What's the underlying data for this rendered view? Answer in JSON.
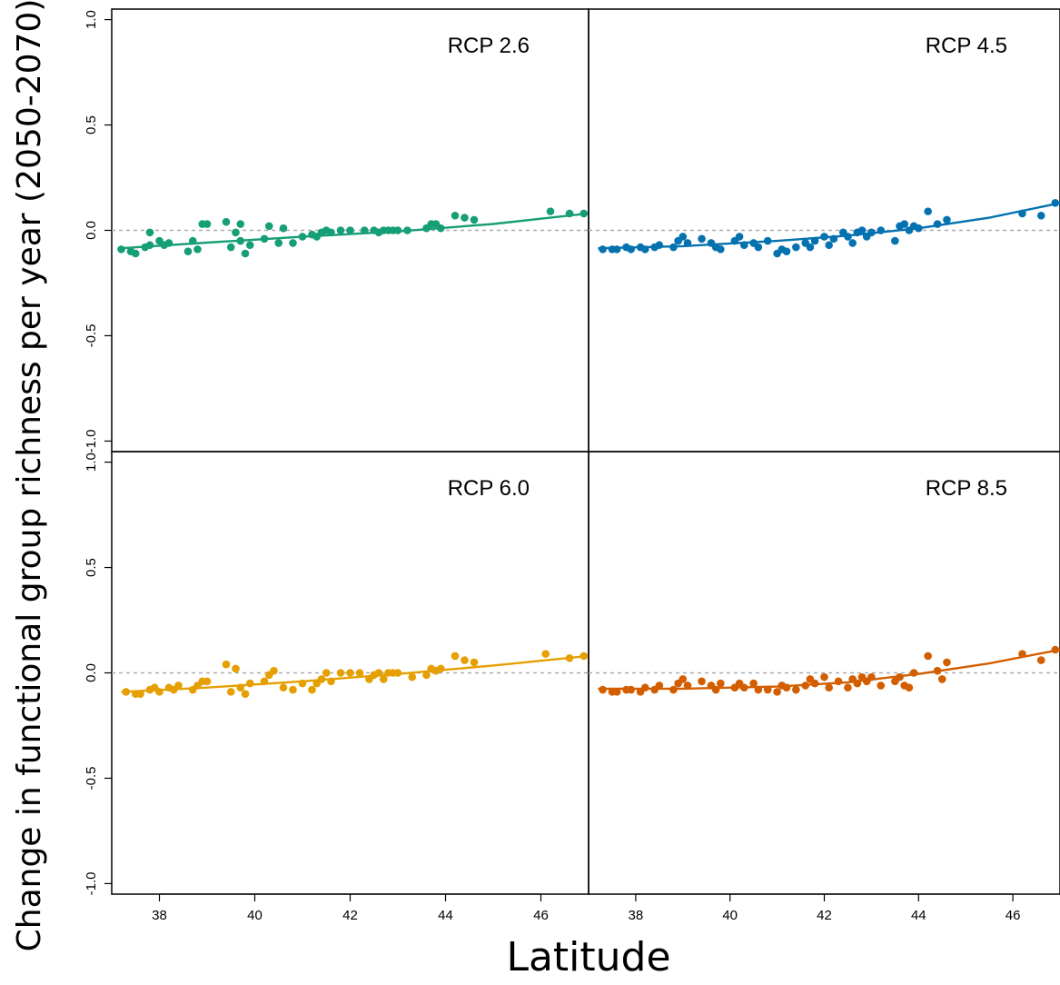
{
  "chart_data": {
    "type": "scatter",
    "xlabel": "Latitude",
    "ylabel": "Change in functional group richness per year (2050-2070)",
    "xlim": [
      37,
      47
    ],
    "ylim": [
      -1.05,
      1.05
    ],
    "x_ticks": [
      38,
      40,
      42,
      44,
      46
    ],
    "y_ticks": [
      -1.0,
      -0.5,
      0.0,
      0.5,
      1.0
    ],
    "y_tick_labels": [
      "-1.0",
      "-0.5",
      "0.0",
      "0.5",
      "1.0"
    ],
    "reference_line": {
      "y": 0.0,
      "style": "dotted",
      "color": "#aaaaaa"
    },
    "grid": false,
    "panels": [
      {
        "label": "RCP 2.6",
        "color": "#169e76",
        "points": [
          [
            37.2,
            -0.09
          ],
          [
            37.4,
            -0.1
          ],
          [
            37.5,
            -0.11
          ],
          [
            37.7,
            -0.08
          ],
          [
            37.8,
            -0.07
          ],
          [
            37.8,
            -0.01
          ],
          [
            38.0,
            -0.05
          ],
          [
            38.1,
            -0.07
          ],
          [
            38.2,
            -0.06
          ],
          [
            38.6,
            -0.1
          ],
          [
            38.7,
            -0.05
          ],
          [
            38.8,
            -0.09
          ],
          [
            38.9,
            0.03
          ],
          [
            39.0,
            0.03
          ],
          [
            39.4,
            0.04
          ],
          [
            39.5,
            -0.08
          ],
          [
            39.6,
            -0.01
          ],
          [
            39.7,
            0.03
          ],
          [
            39.7,
            -0.05
          ],
          [
            39.8,
            -0.11
          ],
          [
            39.9,
            -0.07
          ],
          [
            40.2,
            -0.04
          ],
          [
            40.3,
            0.02
          ],
          [
            40.5,
            -0.06
          ],
          [
            40.6,
            0.01
          ],
          [
            40.8,
            -0.06
          ],
          [
            41.0,
            -0.03
          ],
          [
            41.2,
            -0.02
          ],
          [
            41.3,
            -0.03
          ],
          [
            41.4,
            -0.01
          ],
          [
            41.5,
            0.0
          ],
          [
            41.6,
            -0.01
          ],
          [
            41.8,
            0.0
          ],
          [
            42.0,
            0.0
          ],
          [
            42.3,
            0.0
          ],
          [
            42.5,
            0.0
          ],
          [
            42.6,
            -0.01
          ],
          [
            42.7,
            0.0
          ],
          [
            42.8,
            0.0
          ],
          [
            42.9,
            0.0
          ],
          [
            43.0,
            0.0
          ],
          [
            43.2,
            0.0
          ],
          [
            43.6,
            0.01
          ],
          [
            43.7,
            0.03
          ],
          [
            43.8,
            0.03
          ],
          [
            43.9,
            0.01
          ],
          [
            44.2,
            0.07
          ],
          [
            44.4,
            0.06
          ],
          [
            44.6,
            0.05
          ],
          [
            46.2,
            0.09
          ],
          [
            46.6,
            0.08
          ],
          [
            46.9,
            0.08
          ]
        ],
        "trend": [
          [
            37.2,
            -0.085
          ],
          [
            39,
            -0.058
          ],
          [
            41,
            -0.03
          ],
          [
            43,
            -0.005
          ],
          [
            45,
            0.03
          ],
          [
            47,
            0.08
          ]
        ]
      },
      {
        "label": "RCP 4.5",
        "color": "#0572b0",
        "points": [
          [
            37.3,
            -0.09
          ],
          [
            37.5,
            -0.09
          ],
          [
            37.6,
            -0.09
          ],
          [
            37.8,
            -0.08
          ],
          [
            37.9,
            -0.09
          ],
          [
            38.1,
            -0.08
          ],
          [
            38.2,
            -0.09
          ],
          [
            38.4,
            -0.08
          ],
          [
            38.5,
            -0.07
          ],
          [
            38.8,
            -0.08
          ],
          [
            38.9,
            -0.05
          ],
          [
            39.0,
            -0.03
          ],
          [
            39.1,
            -0.06
          ],
          [
            39.4,
            -0.04
          ],
          [
            39.6,
            -0.06
          ],
          [
            39.7,
            -0.08
          ],
          [
            39.8,
            -0.09
          ],
          [
            40.1,
            -0.05
          ],
          [
            40.2,
            -0.03
          ],
          [
            40.3,
            -0.07
          ],
          [
            40.5,
            -0.06
          ],
          [
            40.6,
            -0.08
          ],
          [
            40.8,
            -0.05
          ],
          [
            41.0,
            -0.11
          ],
          [
            41.1,
            -0.09
          ],
          [
            41.2,
            -0.1
          ],
          [
            41.4,
            -0.08
          ],
          [
            41.6,
            -0.06
          ],
          [
            41.7,
            -0.08
          ],
          [
            41.8,
            -0.05
          ],
          [
            42.0,
            -0.03
          ],
          [
            42.1,
            -0.07
          ],
          [
            42.2,
            -0.04
          ],
          [
            42.4,
            -0.01
          ],
          [
            42.5,
            -0.03
          ],
          [
            42.6,
            -0.06
          ],
          [
            42.7,
            -0.01
          ],
          [
            42.8,
            0.0
          ],
          [
            42.9,
            -0.03
          ],
          [
            43.0,
            -0.01
          ],
          [
            43.2,
            0.0
          ],
          [
            43.5,
            -0.05
          ],
          [
            43.6,
            0.02
          ],
          [
            43.7,
            0.03
          ],
          [
            43.8,
            0.0
          ],
          [
            43.9,
            0.02
          ],
          [
            44.0,
            0.01
          ],
          [
            44.2,
            0.09
          ],
          [
            44.4,
            0.03
          ],
          [
            44.6,
            0.05
          ],
          [
            46.2,
            0.08
          ],
          [
            46.6,
            0.07
          ],
          [
            46.9,
            0.13
          ]
        ],
        "trend": [
          [
            37.2,
            -0.085
          ],
          [
            39,
            -0.075
          ],
          [
            41,
            -0.05
          ],
          [
            42.5,
            -0.025
          ],
          [
            44,
            0.01
          ],
          [
            45.5,
            0.06
          ],
          [
            47,
            0.13
          ]
        ]
      },
      {
        "label": "RCP 6.0",
        "color": "#e59f01",
        "points": [
          [
            37.3,
            -0.09
          ],
          [
            37.5,
            -0.1
          ],
          [
            37.6,
            -0.1
          ],
          [
            37.8,
            -0.08
          ],
          [
            37.9,
            -0.07
          ],
          [
            38.0,
            -0.09
          ],
          [
            38.2,
            -0.07
          ],
          [
            38.3,
            -0.08
          ],
          [
            38.4,
            -0.06
          ],
          [
            38.7,
            -0.08
          ],
          [
            38.8,
            -0.06
          ],
          [
            38.9,
            -0.04
          ],
          [
            39.0,
            -0.04
          ],
          [
            39.4,
            0.04
          ],
          [
            39.5,
            -0.09
          ],
          [
            39.6,
            0.02
          ],
          [
            39.7,
            -0.07
          ],
          [
            39.8,
            -0.1
          ],
          [
            39.9,
            -0.05
          ],
          [
            40.2,
            -0.04
          ],
          [
            40.3,
            -0.01
          ],
          [
            40.4,
            0.01
          ],
          [
            40.6,
            -0.07
          ],
          [
            40.8,
            -0.08
          ],
          [
            41.0,
            -0.05
          ],
          [
            41.2,
            -0.08
          ],
          [
            41.3,
            -0.05
          ],
          [
            41.4,
            -0.03
          ],
          [
            41.5,
            0.0
          ],
          [
            41.6,
            -0.04
          ],
          [
            41.8,
            0.0
          ],
          [
            42.0,
            0.0
          ],
          [
            42.2,
            0.0
          ],
          [
            42.4,
            -0.03
          ],
          [
            42.5,
            -0.01
          ],
          [
            42.6,
            0.0
          ],
          [
            42.7,
            -0.03
          ],
          [
            42.8,
            0.0
          ],
          [
            42.9,
            0.0
          ],
          [
            43.0,
            0.0
          ],
          [
            43.3,
            -0.02
          ],
          [
            43.6,
            -0.01
          ],
          [
            43.7,
            0.02
          ],
          [
            43.8,
            0.01
          ],
          [
            43.9,
            0.02
          ],
          [
            44.2,
            0.08
          ],
          [
            44.4,
            0.06
          ],
          [
            44.6,
            0.05
          ],
          [
            46.1,
            0.09
          ],
          [
            46.6,
            0.07
          ],
          [
            46.9,
            0.08
          ]
        ],
        "trend": [
          [
            37.2,
            -0.09
          ],
          [
            39,
            -0.07
          ],
          [
            41,
            -0.04
          ],
          [
            43,
            -0.005
          ],
          [
            45,
            0.035
          ],
          [
            47,
            0.08
          ]
        ]
      },
      {
        "label": "RCP 8.5",
        "color": "#d35e00",
        "points": [
          [
            37.3,
            -0.08
          ],
          [
            37.5,
            -0.09
          ],
          [
            37.6,
            -0.09
          ],
          [
            37.8,
            -0.08
          ],
          [
            37.9,
            -0.08
          ],
          [
            38.1,
            -0.09
          ],
          [
            38.2,
            -0.07
          ],
          [
            38.4,
            -0.08
          ],
          [
            38.5,
            -0.06
          ],
          [
            38.8,
            -0.08
          ],
          [
            38.9,
            -0.05
          ],
          [
            39.0,
            -0.03
          ],
          [
            39.1,
            -0.06
          ],
          [
            39.4,
            -0.04
          ],
          [
            39.6,
            -0.06
          ],
          [
            39.7,
            -0.08
          ],
          [
            39.8,
            -0.05
          ],
          [
            40.1,
            -0.07
          ],
          [
            40.2,
            -0.05
          ],
          [
            40.3,
            -0.07
          ],
          [
            40.5,
            -0.05
          ],
          [
            40.6,
            -0.08
          ],
          [
            40.8,
            -0.08
          ],
          [
            41.0,
            -0.09
          ],
          [
            41.1,
            -0.06
          ],
          [
            41.2,
            -0.07
          ],
          [
            41.4,
            -0.08
          ],
          [
            41.6,
            -0.06
          ],
          [
            41.7,
            -0.03
          ],
          [
            41.8,
            -0.05
          ],
          [
            42.0,
            -0.02
          ],
          [
            42.1,
            -0.07
          ],
          [
            42.3,
            -0.04
          ],
          [
            42.5,
            -0.07
          ],
          [
            42.6,
            -0.03
          ],
          [
            42.7,
            -0.05
          ],
          [
            42.8,
            -0.02
          ],
          [
            42.9,
            -0.04
          ],
          [
            43.0,
            -0.02
          ],
          [
            43.2,
            -0.06
          ],
          [
            43.5,
            -0.04
          ],
          [
            43.6,
            -0.02
          ],
          [
            43.7,
            -0.06
          ],
          [
            43.8,
            -0.07
          ],
          [
            43.9,
            0.0
          ],
          [
            44.2,
            0.08
          ],
          [
            44.4,
            0.01
          ],
          [
            44.5,
            -0.03
          ],
          [
            44.6,
            0.05
          ],
          [
            46.2,
            0.09
          ],
          [
            46.6,
            0.06
          ],
          [
            46.9,
            0.11
          ]
        ],
        "trend": [
          [
            37.2,
            -0.075
          ],
          [
            39,
            -0.075
          ],
          [
            41,
            -0.065
          ],
          [
            42.5,
            -0.045
          ],
          [
            44,
            -0.005
          ],
          [
            45.5,
            0.045
          ],
          [
            47,
            0.11
          ]
        ]
      }
    ]
  }
}
